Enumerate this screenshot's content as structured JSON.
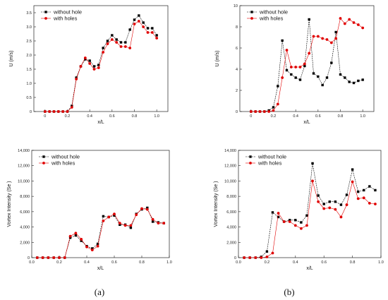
{
  "captions": [
    "(a)",
    "(b)"
  ],
  "colors": {
    "without_hole": "#000000",
    "with_holes": "#e00000",
    "axis": "#222222"
  },
  "chart_data": [
    {
      "type": "line",
      "xlabel": "x/L",
      "ylabel": "U (m/s)",
      "xlim": [
        -0.1,
        1.1
      ],
      "ylim": [
        0,
        3.75
      ],
      "xticks": [
        "0",
        "0.2",
        "0.4",
        "0.6",
        "0.8",
        "1.0"
      ],
      "xtick_values": [
        0,
        0.2,
        0.4,
        0.6,
        0.8,
        1.0
      ],
      "yticks": [
        "0",
        "0.5",
        "1.0",
        "1.5",
        "2.0",
        "2.5",
        "3.0",
        "3.5"
      ],
      "ytick_values": [
        0,
        0.5,
        1.0,
        1.5,
        2.0,
        2.5,
        3.0,
        3.5
      ],
      "legend_position": "top-left",
      "series": [
        {
          "name": "without hole",
          "x": [
            0.0,
            0.04,
            0.08,
            0.12,
            0.16,
            0.2,
            0.24,
            0.28,
            0.32,
            0.36,
            0.4,
            0.44,
            0.48,
            0.52,
            0.56,
            0.6,
            0.64,
            0.68,
            0.72,
            0.76,
            0.8,
            0.84,
            0.88,
            0.92,
            0.96,
            1.0
          ],
          "y": [
            0,
            0,
            0,
            0,
            0,
            0,
            0.2,
            1.2,
            1.6,
            1.85,
            1.8,
            1.6,
            1.65,
            2.25,
            2.5,
            2.7,
            2.55,
            2.45,
            2.45,
            2.9,
            3.25,
            3.4,
            3.15,
            2.95,
            2.95,
            2.7
          ]
        },
        {
          "name": "with holes",
          "x": [
            0.0,
            0.04,
            0.08,
            0.12,
            0.16,
            0.2,
            0.24,
            0.28,
            0.32,
            0.36,
            0.4,
            0.44,
            0.48,
            0.52,
            0.56,
            0.6,
            0.64,
            0.68,
            0.72,
            0.76,
            0.8,
            0.84,
            0.88,
            0.92,
            0.96,
            1.0
          ],
          "y": [
            0,
            0,
            0,
            0,
            0,
            0,
            0.15,
            1.15,
            1.6,
            1.9,
            1.7,
            1.5,
            1.55,
            2.1,
            2.4,
            2.55,
            2.45,
            2.3,
            2.3,
            2.25,
            3.1,
            3.2,
            3.0,
            2.8,
            2.8,
            2.6
          ]
        }
      ]
    },
    {
      "type": "line",
      "xlabel": "x/L",
      "ylabel": "U (m/s)",
      "xlim": [
        -0.1,
        1.1
      ],
      "ylim": [
        0,
        10
      ],
      "xticks": [
        "0",
        "0.2",
        "0.4",
        "0.6",
        "0.8",
        "1.0"
      ],
      "xtick_values": [
        0,
        0.2,
        0.4,
        0.6,
        0.8,
        1.0
      ],
      "yticks": [
        "0",
        "2",
        "4",
        "6",
        "8",
        "10"
      ],
      "ytick_values": [
        0,
        2,
        4,
        6,
        8,
        10
      ],
      "legend_position": "top-left",
      "series": [
        {
          "name": "without hole",
          "x": [
            0.0,
            0.04,
            0.08,
            0.12,
            0.16,
            0.2,
            0.24,
            0.28,
            0.32,
            0.36,
            0.4,
            0.44,
            0.48,
            0.52,
            0.56,
            0.6,
            0.64,
            0.68,
            0.72,
            0.76,
            0.8,
            0.84,
            0.88,
            0.92,
            0.96,
            1.0
          ],
          "y": [
            0,
            0,
            0,
            0,
            0.1,
            0.4,
            2.4,
            6.7,
            3.9,
            3.5,
            3.2,
            3.0,
            4.3,
            8.7,
            3.6,
            3.3,
            2.5,
            3.2,
            4.6,
            7.5,
            3.5,
            3.2,
            2.8,
            2.7,
            2.9,
            3.0
          ]
        },
        {
          "name": "with holes",
          "x": [
            0.0,
            0.04,
            0.08,
            0.12,
            0.16,
            0.2,
            0.24,
            0.28,
            0.32,
            0.36,
            0.4,
            0.44,
            0.48,
            0.52,
            0.56,
            0.6,
            0.64,
            0.68,
            0.72,
            0.76,
            0.8,
            0.84,
            0.88,
            0.92,
            0.96,
            1.0
          ],
          "y": [
            0,
            0,
            0,
            0,
            0,
            0.1,
            0.7,
            3.2,
            5.8,
            4.2,
            4.2,
            4.2,
            4.5,
            5.5,
            7.1,
            7.1,
            6.9,
            6.8,
            6.5,
            6.9,
            8.8,
            8.3,
            8.7,
            8.4,
            8.2,
            7.9
          ]
        }
      ]
    },
    {
      "type": "line",
      "xlabel": "x/L",
      "ylabel": "Vortex Intensity (Se )",
      "xlim": [
        0,
        1.0
      ],
      "ylim": [
        0,
        14000
      ],
      "xticks": [
        "0.0",
        "0.2",
        "0.4",
        "0.6",
        "0.8",
        "1.0"
      ],
      "xtick_values": [
        0,
        0.2,
        0.4,
        0.6,
        0.8,
        1.0
      ],
      "yticks": [
        "0",
        "2,000",
        "4,000",
        "6,000",
        "8,000",
        "10,000",
        "12,000",
        "14,000"
      ],
      "ytick_values": [
        0,
        2000,
        4000,
        6000,
        8000,
        10000,
        12000,
        14000
      ],
      "legend_position": "top-left",
      "series": [
        {
          "name": "without hole",
          "x": [
            0.04,
            0.08,
            0.12,
            0.16,
            0.2,
            0.24,
            0.28,
            0.32,
            0.36,
            0.4,
            0.44,
            0.48,
            0.52,
            0.56,
            0.6,
            0.64,
            0.68,
            0.72,
            0.76,
            0.8,
            0.84,
            0.88,
            0.92,
            0.96
          ],
          "y": [
            0,
            0,
            0,
            0,
            0,
            0,
            2600,
            2900,
            2200,
            1500,
            1200,
            1800,
            5400,
            5300,
            5500,
            4300,
            4300,
            3900,
            5700,
            6300,
            6500,
            4700,
            4600,
            4500
          ]
        },
        {
          "name": "with holes",
          "x": [
            0.04,
            0.08,
            0.12,
            0.16,
            0.2,
            0.24,
            0.28,
            0.32,
            0.36,
            0.4,
            0.44,
            0.48,
            0.52,
            0.56,
            0.6,
            0.64,
            0.68,
            0.72,
            0.76,
            0.8,
            0.84,
            0.88,
            0.92,
            0.96
          ],
          "y": [
            0,
            0,
            0,
            0,
            0,
            0,
            2800,
            3200,
            2400,
            1400,
            1000,
            1500,
            4800,
            5300,
            5700,
            4500,
            4200,
            4200,
            5600,
            6400,
            6300,
            5000,
            4500,
            4500
          ]
        }
      ]
    },
    {
      "type": "line",
      "xlabel": "x/L",
      "ylabel": "Vortex Intensity (Se )",
      "xlim": [
        0,
        1.0
      ],
      "ylim": [
        0,
        14000
      ],
      "xticks": [
        "0.0",
        "0.2",
        "0.4",
        "0.6",
        "0.8",
        "1.0"
      ],
      "xtick_values": [
        0,
        0.2,
        0.4,
        0.6,
        0.8,
        1.0
      ],
      "yticks": [
        "0",
        "2,000",
        "4,000",
        "6,000",
        "8,000",
        "10,000",
        "12,000",
        "14,000"
      ],
      "ytick_values": [
        0,
        2000,
        4000,
        6000,
        8000,
        10000,
        12000,
        14000
      ],
      "legend_position": "top-left",
      "series": [
        {
          "name": "without hole",
          "x": [
            0.04,
            0.08,
            0.12,
            0.16,
            0.2,
            0.24,
            0.28,
            0.32,
            0.36,
            0.4,
            0.44,
            0.48,
            0.52,
            0.56,
            0.6,
            0.64,
            0.68,
            0.72,
            0.76,
            0.8,
            0.84,
            0.88,
            0.92,
            0.96
          ],
          "y": [
            0,
            0,
            0,
            100,
            800,
            5900,
            5300,
            4700,
            4900,
            4900,
            4600,
            5500,
            12300,
            8100,
            7000,
            7300,
            7300,
            6900,
            8200,
            11500,
            8600,
            8800,
            9300,
            8800
          ]
        },
        {
          "name": "with holes",
          "x": [
            0.04,
            0.08,
            0.12,
            0.16,
            0.2,
            0.24,
            0.28,
            0.32,
            0.36,
            0.4,
            0.44,
            0.48,
            0.52,
            0.56,
            0.6,
            0.64,
            0.68,
            0.72,
            0.76,
            0.8,
            0.84,
            0.88,
            0.92,
            0.96
          ],
          "y": [
            0,
            0,
            0,
            0,
            100,
            600,
            5800,
            4700,
            4700,
            4200,
            3800,
            4200,
            10000,
            7300,
            6400,
            6500,
            6300,
            5300,
            6900,
            9900,
            7700,
            7800,
            7100,
            7000
          ]
        }
      ]
    }
  ]
}
